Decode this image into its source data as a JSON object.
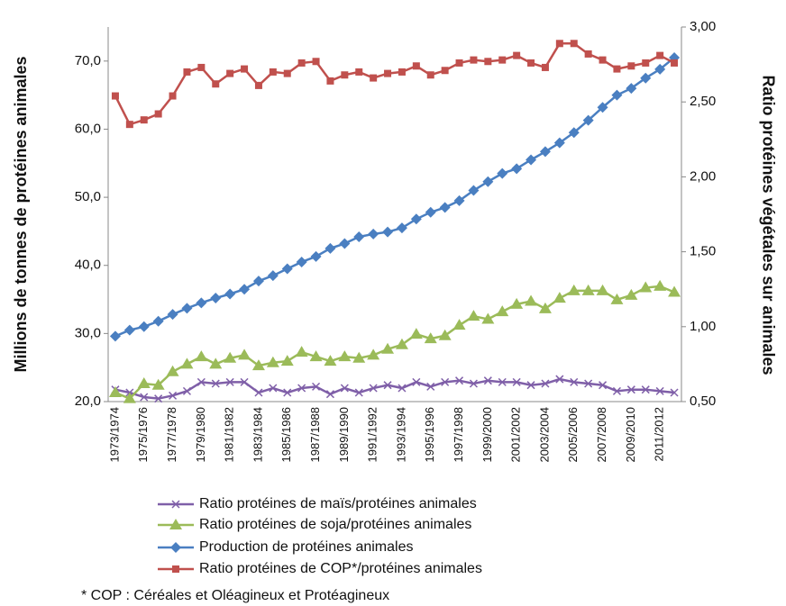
{
  "chart_data": {
    "type": "line",
    "y_label": "Millions de tonnes de protéines animales",
    "y2_label": "Ratio protéines végétales sur animales",
    "footnote": "* COP : Céréales et Oléagineux et Protéagineux",
    "categories": [
      "1973/1974",
      null,
      "1975/1976",
      null,
      "1977/1978",
      null,
      "1979/1980",
      null,
      "1981/1982",
      null,
      "1983/1984",
      null,
      "1985/1986",
      null,
      "1987/1988",
      null,
      "1989/1990",
      null,
      "1991/1992",
      null,
      "1993/1994",
      null,
      "1995/1996",
      null,
      "1997/1998",
      null,
      "1999/2000",
      null,
      "2001/2002",
      null,
      "2003/2004",
      null,
      "2005/2006",
      null,
      "2007/2008",
      null,
      "2009/2010",
      null,
      "2011/2012",
      null
    ],
    "ylim": [
      20,
      75
    ],
    "yticks": [
      {
        "value": 20,
        "label": "20,0"
      },
      {
        "value": 30,
        "label": "30,0"
      },
      {
        "value": 40,
        "label": "40,0"
      },
      {
        "value": 50,
        "label": "50,0"
      },
      {
        "value": 60,
        "label": "60,0"
      },
      {
        "value": 70,
        "label": "70,0"
      }
    ],
    "y2lim": [
      0.5,
      3.0
    ],
    "y2ticks": [
      {
        "value": 0.5,
        "label": "0,50"
      },
      {
        "value": 1.0,
        "label": "1,00"
      },
      {
        "value": 1.5,
        "label": "1,50"
      },
      {
        "value": 2.0,
        "label": "2,00"
      },
      {
        "value": 2.5,
        "label": "2,50"
      },
      {
        "value": 3.0,
        "label": "3,00"
      }
    ],
    "series": [
      {
        "name": "Ratio protéines de maïs/protéines animales",
        "color": "#7f5fa8",
        "marker": "x",
        "axis": "y2",
        "values": [
          0.58,
          0.56,
          0.53,
          0.52,
          0.54,
          0.57,
          0.63,
          0.62,
          0.63,
          0.63,
          0.56,
          0.59,
          0.56,
          0.59,
          0.6,
          0.55,
          0.59,
          0.56,
          0.59,
          0.61,
          0.59,
          0.63,
          0.6,
          0.63,
          0.64,
          0.62,
          0.64,
          0.63,
          0.63,
          0.61,
          0.62,
          0.65,
          0.63,
          0.62,
          0.61,
          0.57,
          0.58,
          0.58,
          0.57,
          0.56
        ]
      },
      {
        "name": "Ratio protéines de soja/protéines animales",
        "color": "#9bbb59",
        "marker": "triangle",
        "axis": "y2",
        "values": [
          0.56,
          0.52,
          0.62,
          0.61,
          0.7,
          0.75,
          0.8,
          0.75,
          0.79,
          0.81,
          0.74,
          0.76,
          0.77,
          0.83,
          0.8,
          0.77,
          0.8,
          0.79,
          0.81,
          0.85,
          0.88,
          0.95,
          0.92,
          0.94,
          1.01,
          1.07,
          1.05,
          1.1,
          1.15,
          1.17,
          1.12,
          1.19,
          1.24,
          1.24,
          1.24,
          1.18,
          1.21,
          1.26,
          1.27,
          1.23
        ]
      },
      {
        "name": "Production de protéines animales",
        "color": "#4a7fc1",
        "marker": "diamond",
        "axis": "y",
        "values": [
          29.6,
          30.5,
          31.0,
          31.8,
          32.8,
          33.7,
          34.5,
          35.2,
          35.8,
          36.5,
          37.7,
          38.5,
          39.5,
          40.5,
          41.3,
          42.5,
          43.2,
          44.2,
          44.6,
          44.9,
          45.5,
          46.8,
          47.8,
          48.5,
          49.5,
          51.0,
          52.3,
          53.5,
          54.2,
          55.5,
          56.7,
          58.0,
          59.5,
          61.3,
          63.2,
          65.0,
          66.0,
          67.5,
          68.8,
          70.5
        ]
      },
      {
        "name": "Ratio protéines de COP*/protéines animales",
        "color": "#c0504d",
        "marker": "square",
        "axis": "y2",
        "values": [
          2.54,
          2.35,
          2.38,
          2.42,
          2.54,
          2.7,
          2.73,
          2.62,
          2.69,
          2.72,
          2.61,
          2.7,
          2.69,
          2.76,
          2.77,
          2.64,
          2.68,
          2.7,
          2.66,
          2.69,
          2.7,
          2.74,
          2.68,
          2.71,
          2.76,
          2.78,
          2.77,
          2.78,
          2.81,
          2.76,
          2.73,
          2.89,
          2.89,
          2.82,
          2.78,
          2.72,
          2.74,
          2.76,
          2.81,
          2.76
        ]
      }
    ]
  }
}
